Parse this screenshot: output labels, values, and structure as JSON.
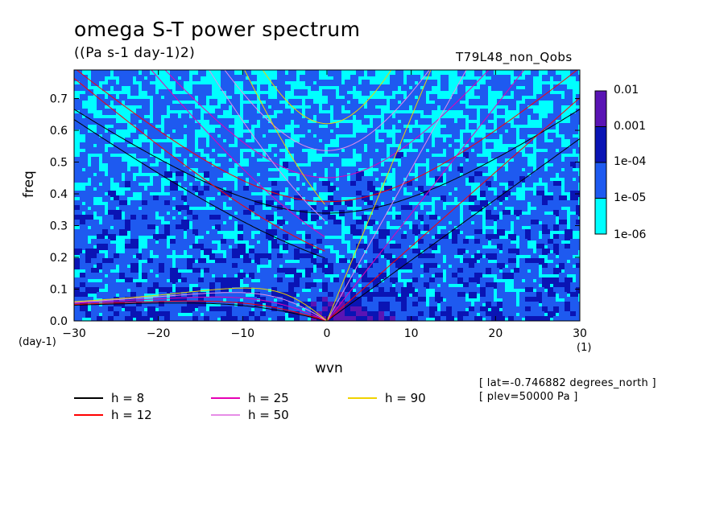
{
  "chart_data": {
    "type": "heatmap",
    "title": "omega S-T power spectrum",
    "subtitle": "((Pa s-1 day-1)2)",
    "run_name": "T79L48_non_Qobs",
    "xlabel": "wvn",
    "ylabel": "freq",
    "x_unit": "(1)",
    "y_unit": "(day-1)",
    "xlim": [
      -30,
      30
    ],
    "ylim": [
      0,
      0.79
    ],
    "x_ticks": [
      "-30",
      "-20",
      "-10",
      "0",
      "10",
      "20",
      "30"
    ],
    "y_ticks": [
      "0.0",
      "0.1",
      "0.2",
      "0.3",
      "0.4",
      "0.5",
      "0.6",
      "0.7"
    ],
    "colorbar": {
      "labels": [
        "0.01",
        "0.001",
        "1e-04",
        "1e-05",
        "1e-06"
      ],
      "colors": [
        "#5a14b4",
        "#0a14b4",
        "#1e5af0",
        "#00ffff"
      ]
    },
    "dispersion_curves": [
      {
        "name": "h = 8",
        "h": 8,
        "color": "#000000"
      },
      {
        "name": "h = 12",
        "h": 12,
        "color": "#ff0000"
      },
      {
        "name": "h = 25",
        "h": 25,
        "color": "#e600b4"
      },
      {
        "name": "h = 50",
        "h": 50,
        "color": "#e68ce6"
      },
      {
        "name": "h = 90",
        "h": 90,
        "color": "#f0d200"
      }
    ],
    "annotations": [
      "[ lat=-0.746882 degrees_north ]",
      "[ plev=50000 Pa ]"
    ]
  }
}
